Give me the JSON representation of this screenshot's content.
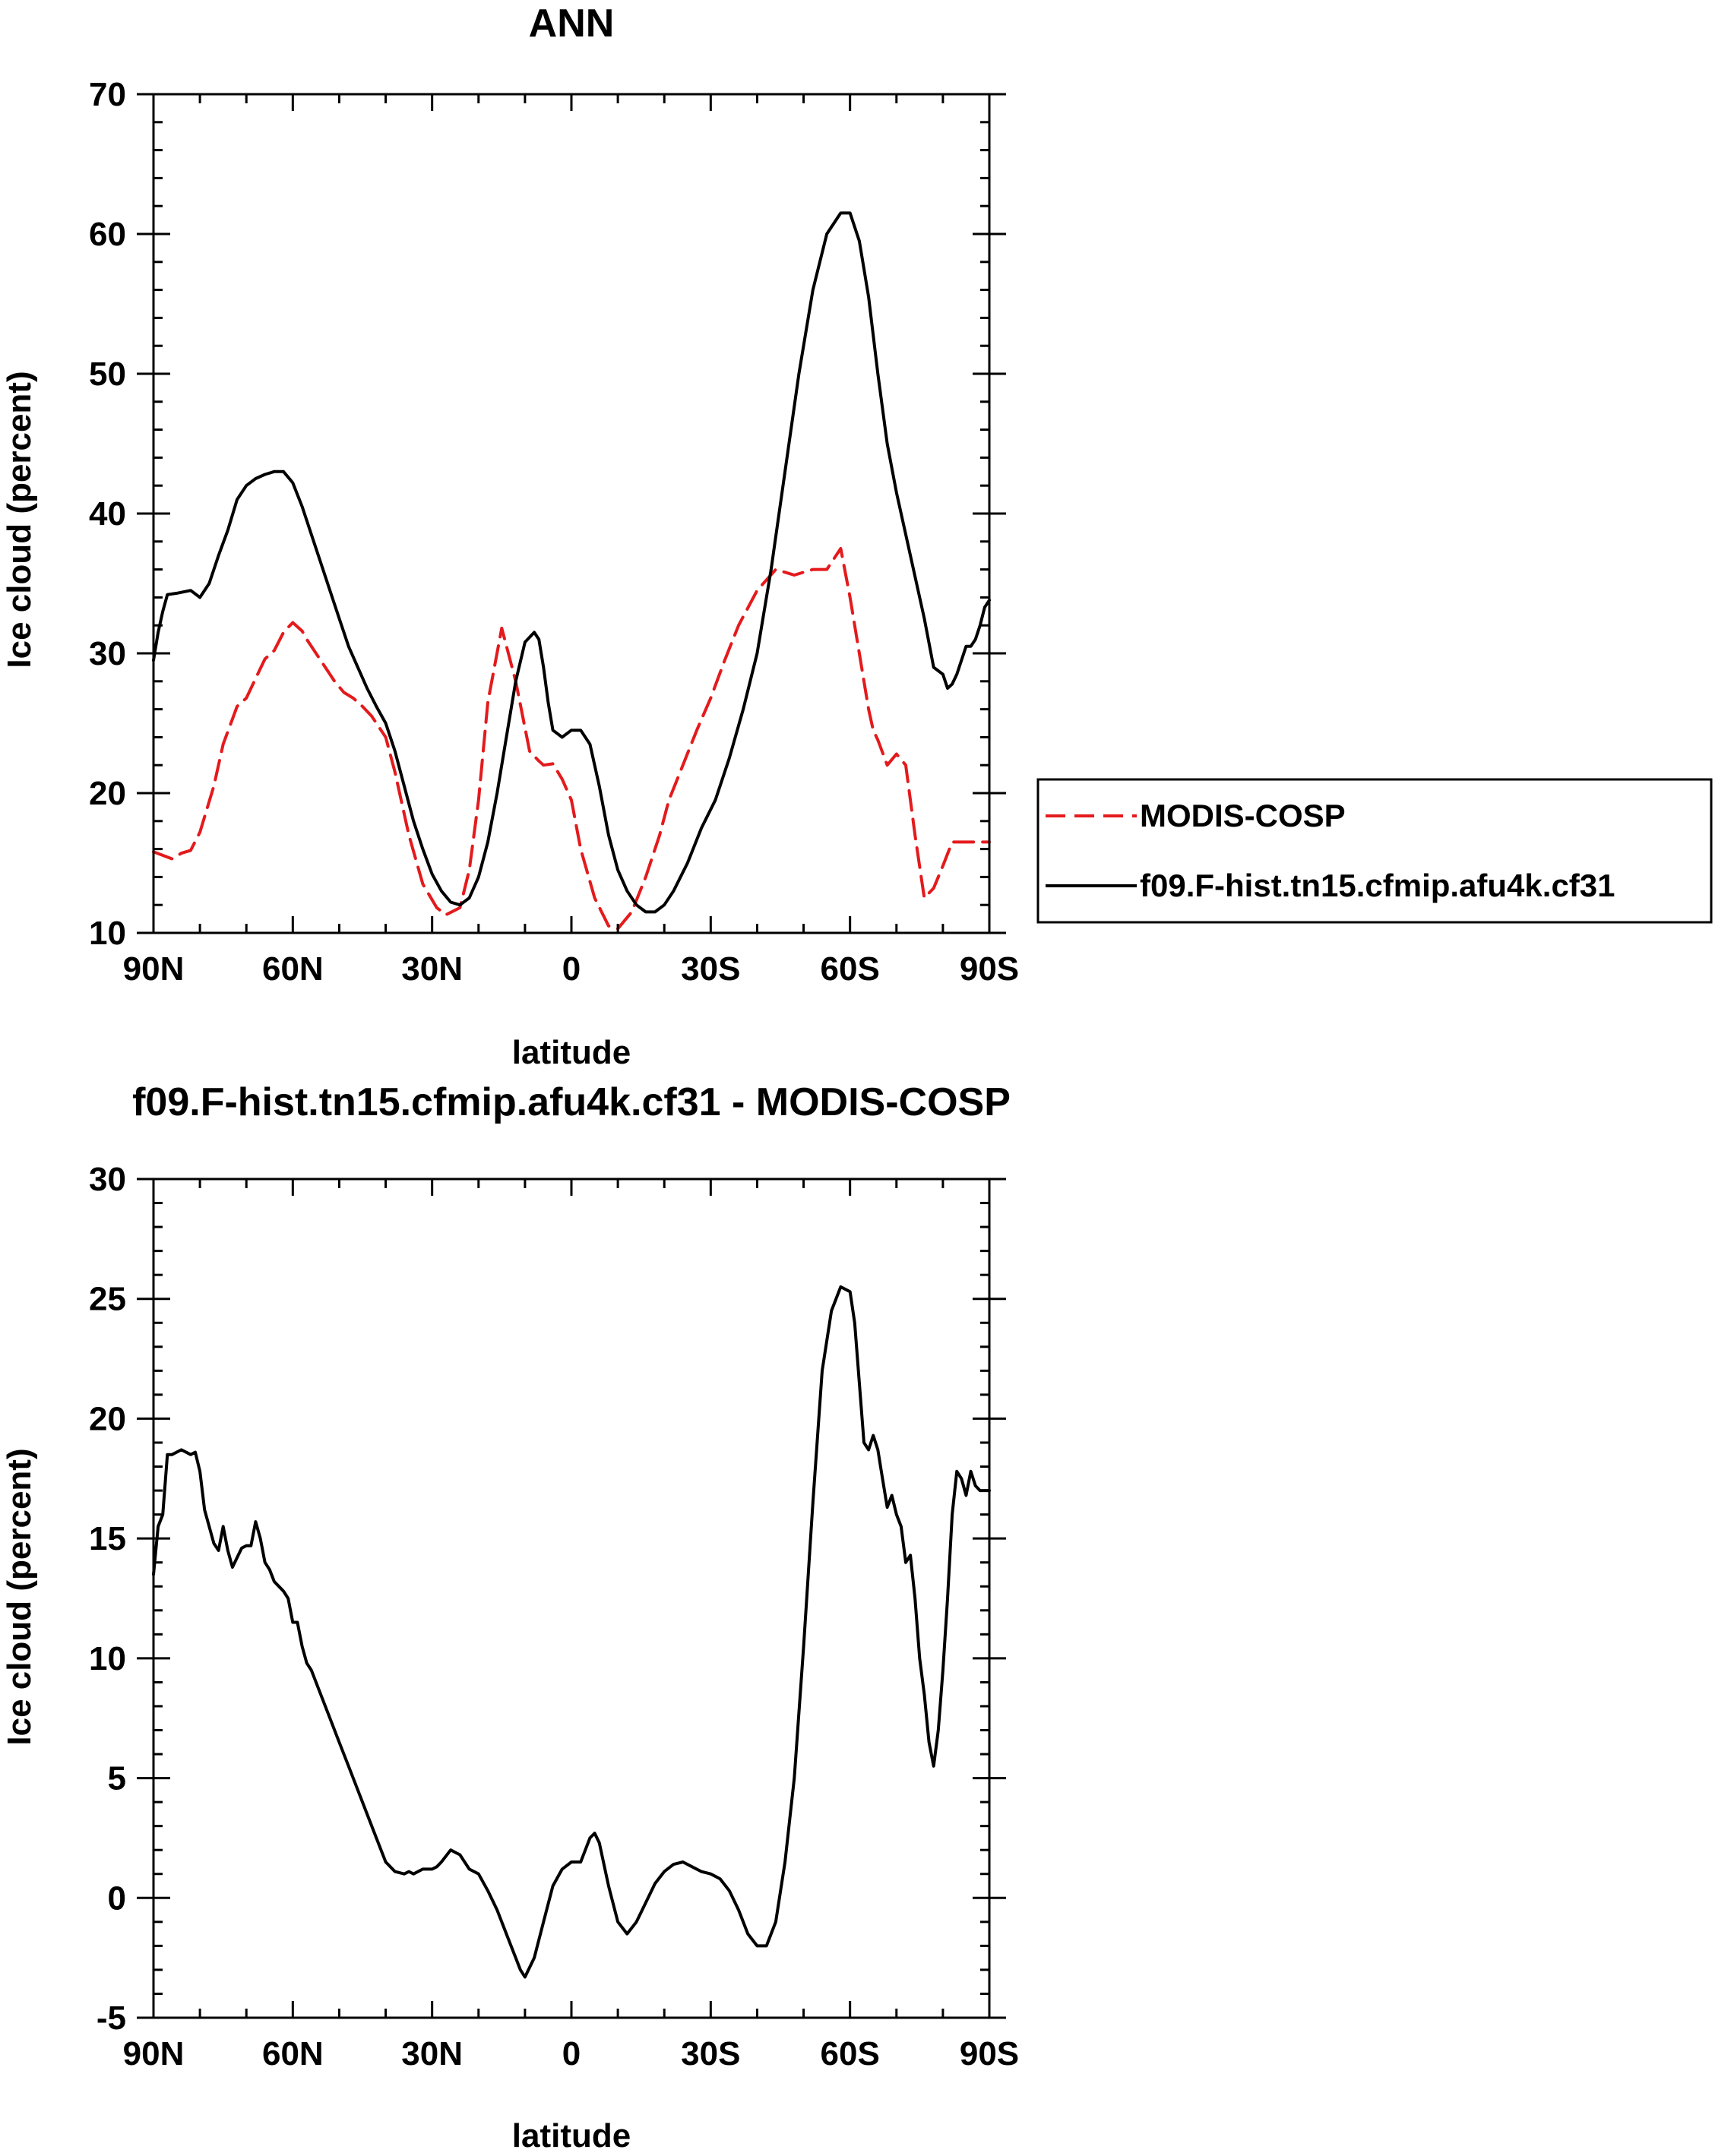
{
  "chart_data": [
    {
      "type": "line",
      "title": "ANN",
      "xlabel": "latitude",
      "ylabel": "Ice cloud (percent)",
      "xlim": [
        90,
        -90
      ],
      "ylim": [
        10,
        70
      ],
      "xticks": [
        {
          "value": 90,
          "label": "90N"
        },
        {
          "value": 60,
          "label": "60N"
        },
        {
          "value": 30,
          "label": "30N"
        },
        {
          "value": 0,
          "label": "0"
        },
        {
          "value": -30,
          "label": "30S"
        },
        {
          "value": -60,
          "label": "60S"
        },
        {
          "value": -90,
          "label": "90S"
        }
      ],
      "yticks": [
        {
          "value": 10,
          "label": "10"
        },
        {
          "value": 20,
          "label": "20"
        },
        {
          "value": 30,
          "label": "30"
        },
        {
          "value": 40,
          "label": "40"
        },
        {
          "value": 50,
          "label": "50"
        },
        {
          "value": 60,
          "label": "60"
        },
        {
          "value": 70,
          "label": "70"
        }
      ],
      "legend_position": "right",
      "series": [
        {
          "name": "MODIS-COSP",
          "color": "#e41a1c",
          "dash": true,
          "x": [
            90,
            86,
            84,
            82,
            80,
            77,
            75,
            72,
            70,
            68,
            66,
            64,
            62,
            60,
            58,
            57,
            55,
            53,
            51,
            49,
            47,
            45,
            43,
            40,
            38,
            35,
            32,
            29,
            27,
            24,
            22,
            20,
            18,
            15,
            12,
            9,
            7,
            6,
            4,
            2,
            0,
            -2,
            -5,
            -8,
            -10,
            -13,
            -16,
            -19,
            -21,
            -24,
            -27,
            -30,
            -33,
            -36,
            -40,
            -44,
            -48,
            -52,
            -55,
            -58,
            -60,
            -62,
            -64,
            -65,
            -66,
            -68,
            -70,
            -72,
            -74,
            -76,
            -78,
            -80,
            -82,
            -84,
            -86,
            -88,
            -90
          ],
          "values": [
            15.8,
            15.3,
            15.7,
            15.9,
            17.2,
            20.5,
            23.5,
            26.2,
            26.8,
            28.2,
            29.6,
            30.2,
            31.5,
            32.2,
            31.6,
            31.0,
            30.0,
            29.0,
            28.0,
            27.2,
            26.8,
            26.2,
            25.5,
            24.0,
            21.5,
            17.0,
            13.5,
            11.8,
            11.3,
            11.8,
            14.5,
            19.5,
            26.5,
            31.8,
            28.0,
            23.0,
            22.3,
            22.0,
            22.1,
            21.0,
            19.5,
            16.0,
            12.5,
            10.5,
            10.3,
            11.5,
            14.0,
            17.0,
            19.5,
            22.0,
            24.5,
            26.8,
            29.5,
            32.0,
            34.5,
            36.0,
            35.6,
            36.0,
            36.0,
            37.5,
            34.0,
            30.0,
            26.0,
            24.5,
            23.8,
            22.0,
            22.8,
            22.0,
            17.0,
            12.5,
            13.2,
            14.8,
            16.5,
            16.5,
            16.5,
            16.5,
            16.5
          ]
        },
        {
          "name": "f09.F-hist.tn15.cfmip.afu4k.cf31",
          "color": "#000000",
          "dash": false,
          "x": [
            90,
            89,
            88,
            87,
            85,
            82,
            80,
            78,
            76,
            74,
            72,
            70,
            68,
            66,
            64,
            62,
            60,
            58,
            56,
            54,
            52,
            50,
            48,
            46,
            44,
            42,
            40,
            38,
            36,
            34,
            32,
            30,
            28,
            26,
            24,
            22,
            20,
            18,
            16,
            14,
            12,
            10,
            8,
            7,
            6,
            5,
            4,
            2,
            0,
            -2,
            -4,
            -6,
            -8,
            -10,
            -12,
            -14,
            -16,
            -18,
            -20,
            -22,
            -25,
            -28,
            -31,
            -34,
            -37,
            -40,
            -43,
            -46,
            -49,
            -52,
            -55,
            -58,
            -60,
            -62,
            -64,
            -66,
            -68,
            -70,
            -72,
            -74,
            -76,
            -78,
            -80,
            -81,
            -82,
            -83,
            -84,
            -85,
            -86,
            -87,
            -88,
            -89,
            -90
          ],
          "values": [
            29.5,
            31.5,
            33.0,
            34.2,
            34.3,
            34.5,
            34.0,
            35.0,
            37.0,
            38.8,
            41.0,
            42.0,
            42.5,
            42.8,
            43.0,
            43.0,
            42.2,
            40.5,
            38.5,
            36.5,
            34.5,
            32.5,
            30.5,
            29.0,
            27.5,
            26.2,
            25.0,
            23.0,
            20.5,
            18.0,
            16.0,
            14.2,
            13.0,
            12.2,
            12.0,
            12.5,
            14.0,
            16.5,
            20.0,
            24.0,
            28.0,
            30.8,
            31.5,
            31.0,
            29.0,
            26.5,
            24.5,
            24.0,
            24.5,
            24.5,
            23.5,
            20.5,
            17.0,
            14.5,
            13.0,
            12.0,
            11.5,
            11.5,
            12.0,
            13.0,
            15.0,
            17.5,
            19.5,
            22.5,
            26.0,
            30.0,
            36.0,
            43.0,
            50.0,
            56.0,
            60.0,
            61.5,
            61.5,
            59.5,
            55.5,
            50.0,
            45.0,
            41.5,
            38.5,
            35.5,
            32.5,
            29.0,
            28.5,
            27.5,
            27.8,
            28.5,
            29.5,
            30.5,
            30.5,
            31.0,
            32.0,
            33.3,
            33.8
          ]
        }
      ]
    },
    {
      "type": "line",
      "title": "f09.F-hist.tn15.cfmip.afu4k.cf31 - MODIS-COSP",
      "xlabel": "latitude",
      "ylabel": "Ice cloud (percent)",
      "xlim": [
        90,
        -90
      ],
      "ylim": [
        -5,
        30
      ],
      "xticks": [
        {
          "value": 90,
          "label": "90N"
        },
        {
          "value": 60,
          "label": "60N"
        },
        {
          "value": 30,
          "label": "30N"
        },
        {
          "value": 0,
          "label": "0"
        },
        {
          "value": -30,
          "label": "30S"
        },
        {
          "value": -60,
          "label": "60S"
        },
        {
          "value": -90,
          "label": "90S"
        }
      ],
      "yticks": [
        {
          "value": -5,
          "label": "-5"
        },
        {
          "value": 0,
          "label": "0"
        },
        {
          "value": 5,
          "label": "5"
        },
        {
          "value": 10,
          "label": "10"
        },
        {
          "value": 15,
          "label": "15"
        },
        {
          "value": 20,
          "label": "20"
        },
        {
          "value": 25,
          "label": "25"
        },
        {
          "value": 30,
          "label": "30"
        }
      ],
      "series": [
        {
          "color": "#000000",
          "dash": false,
          "x": [
            90,
            89,
            88,
            87,
            86,
            84,
            82,
            81,
            80,
            79,
            78,
            77,
            76,
            75,
            74,
            73,
            72,
            71,
            70,
            69,
            68,
            67,
            66,
            65,
            64,
            63,
            62,
            61,
            60,
            59,
            58,
            57,
            56,
            54,
            52,
            50,
            48,
            46,
            44,
            42,
            40,
            38,
            36,
            35,
            34,
            32,
            30,
            29,
            28,
            26,
            24,
            22,
            20,
            18,
            16,
            14,
            12,
            11,
            10,
            8,
            6,
            4,
            2,
            0,
            -2,
            -3,
            -4,
            -5,
            -6,
            -8,
            -10,
            -12,
            -14,
            -16,
            -18,
            -20,
            -22,
            -24,
            -26,
            -28,
            -30,
            -32,
            -34,
            -36,
            -38,
            -40,
            -42,
            -44,
            -46,
            -48,
            -50,
            -52,
            -54,
            -56,
            -58,
            -60,
            -61,
            -62,
            -63,
            -64,
            -65,
            -66,
            -67,
            -68,
            -69,
            -70,
            -71,
            -72,
            -73,
            -74,
            -75,
            -76,
            -77,
            -78,
            -79,
            -80,
            -81,
            -82,
            -83,
            -84,
            -85,
            -86,
            -87,
            -88,
            -89,
            -90
          ],
          "values": [
            13.5,
            15.5,
            16.0,
            18.5,
            18.5,
            18.7,
            18.5,
            18.6,
            17.8,
            16.2,
            15.5,
            14.8,
            14.5,
            15.5,
            14.5,
            13.8,
            14.2,
            14.6,
            14.7,
            14.7,
            15.7,
            15.0,
            14.0,
            13.7,
            13.2,
            13.0,
            12.8,
            12.5,
            11.5,
            11.5,
            10.5,
            9.8,
            9.5,
            8.5,
            7.5,
            6.5,
            5.5,
            4.5,
            3.5,
            2.5,
            1.5,
            1.1,
            1.0,
            1.1,
            1.0,
            1.2,
            1.2,
            1.3,
            1.5,
            2.0,
            1.8,
            1.2,
            1.0,
            0.3,
            -0.5,
            -1.5,
            -2.5,
            -3.0,
            -3.3,
            -2.5,
            -1.0,
            0.5,
            1.2,
            1.5,
            1.5,
            2.0,
            2.5,
            2.7,
            2.3,
            0.5,
            -1.0,
            -1.5,
            -1.0,
            -0.2,
            0.6,
            1.1,
            1.4,
            1.5,
            1.3,
            1.1,
            1.0,
            0.8,
            0.3,
            -0.5,
            -1.5,
            -2.0,
            -2.0,
            -1.0,
            1.5,
            5.0,
            10.5,
            16.5,
            22.0,
            24.5,
            25.5,
            25.3,
            24.0,
            21.5,
            19.0,
            18.7,
            19.3,
            18.7,
            17.5,
            16.3,
            16.8,
            16.0,
            15.5,
            14.0,
            14.3,
            12.5,
            10.0,
            8.5,
            6.5,
            5.5,
            7.0,
            9.5,
            12.5,
            16.0,
            17.8,
            17.5,
            16.8,
            17.8,
            17.2,
            17.0,
            17.0,
            17.0
          ]
        }
      ]
    }
  ]
}
